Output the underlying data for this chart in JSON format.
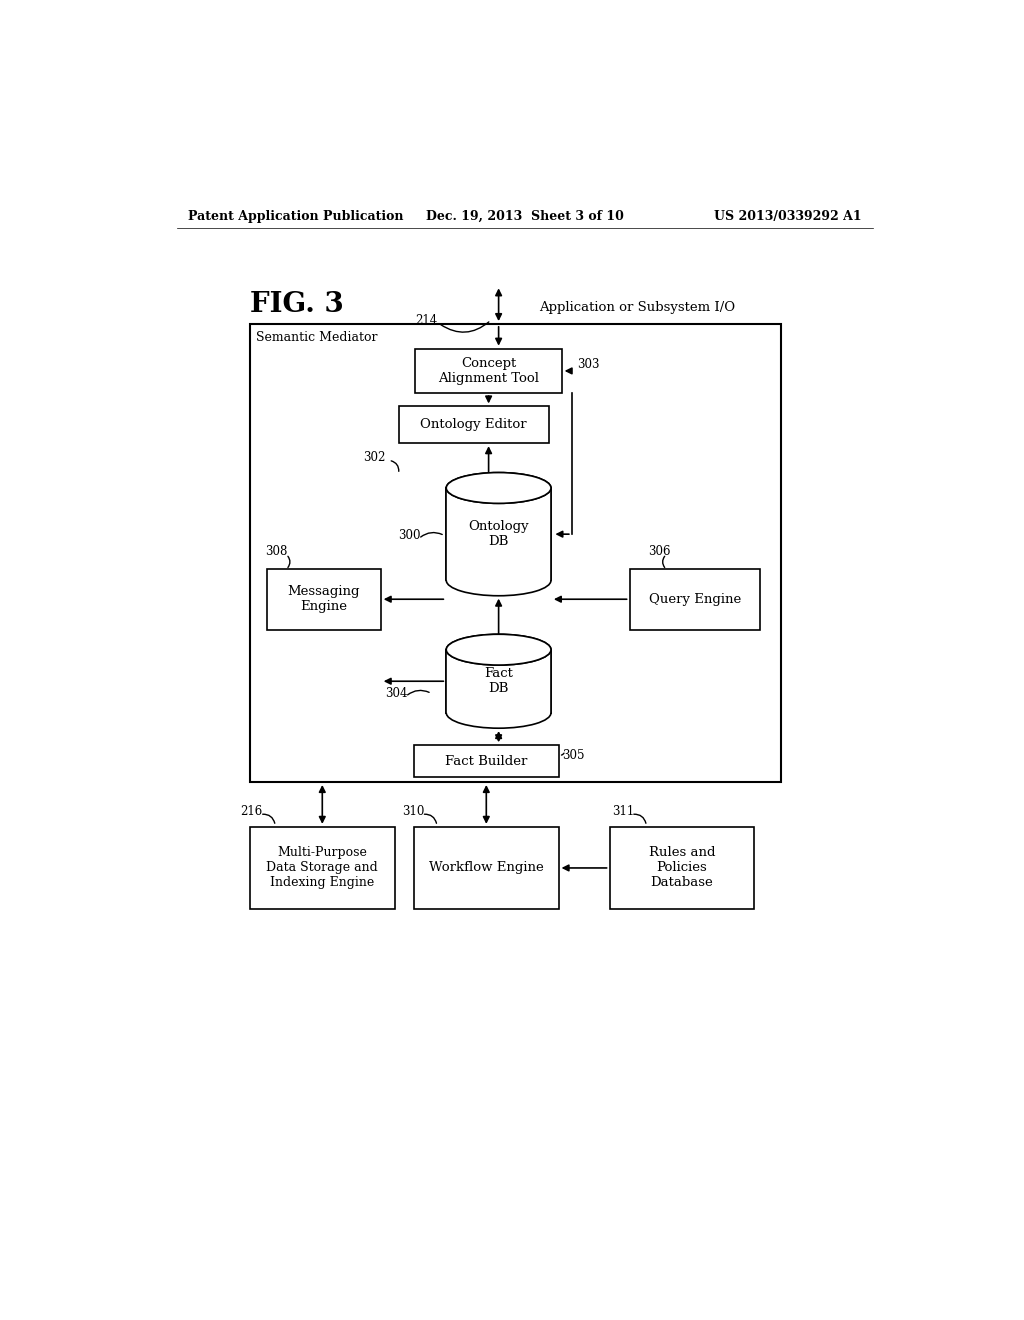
{
  "header_left": "Patent Application Publication",
  "header_center": "Dec. 19, 2013  Sheet 3 of 10",
  "header_right": "US 2013/0339292 A1",
  "fig_label": "FIG. 3",
  "background": "#ffffff"
}
